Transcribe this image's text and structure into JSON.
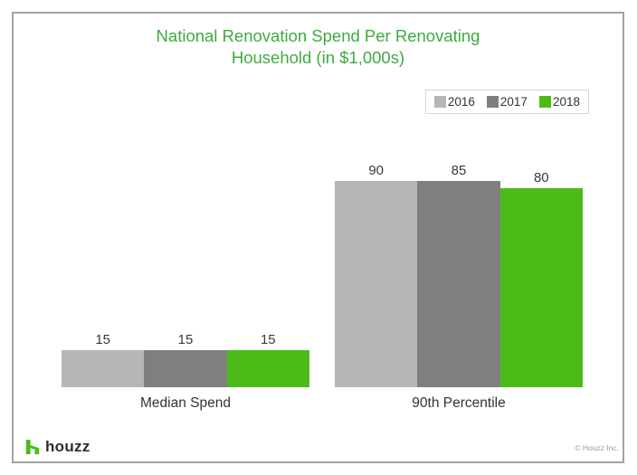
{
  "header": {
    "title_line1": "National Renovation Spend Per Renovating",
    "title_line2": "Household (in $1,000s)",
    "title_color": "#3faa3f"
  },
  "footer": {
    "brand_name": "houzz",
    "copyright": "© Houzz Inc."
  },
  "colors": {
    "brand_green": "#4DBC15",
    "series_2016": "#b6b6b6",
    "series_2017": "#7f7f7f",
    "series_2018": "#4cbb17",
    "frame_border": "#a3a3a3"
  },
  "chart_data": {
    "type": "bar",
    "title": "National Renovation Spend Per Renovating Household (in $1,000s)",
    "units": "$1,000s",
    "categories": [
      "Median Spend",
      "90th Percentile"
    ],
    "series": [
      {
        "name": "2016",
        "color": "#b6b6b6",
        "values": [
          15,
          90
        ]
      },
      {
        "name": "2017",
        "color": "#7f7f7f",
        "values": [
          15,
          85
        ]
      },
      {
        "name": "2018",
        "color": "#4cbb17",
        "values": [
          15,
          80
        ]
      }
    ],
    "ylim": [
      0,
      90
    ],
    "grid": false,
    "axes_visible": false,
    "legend_position": "top-right",
    "value_labels": true
  }
}
